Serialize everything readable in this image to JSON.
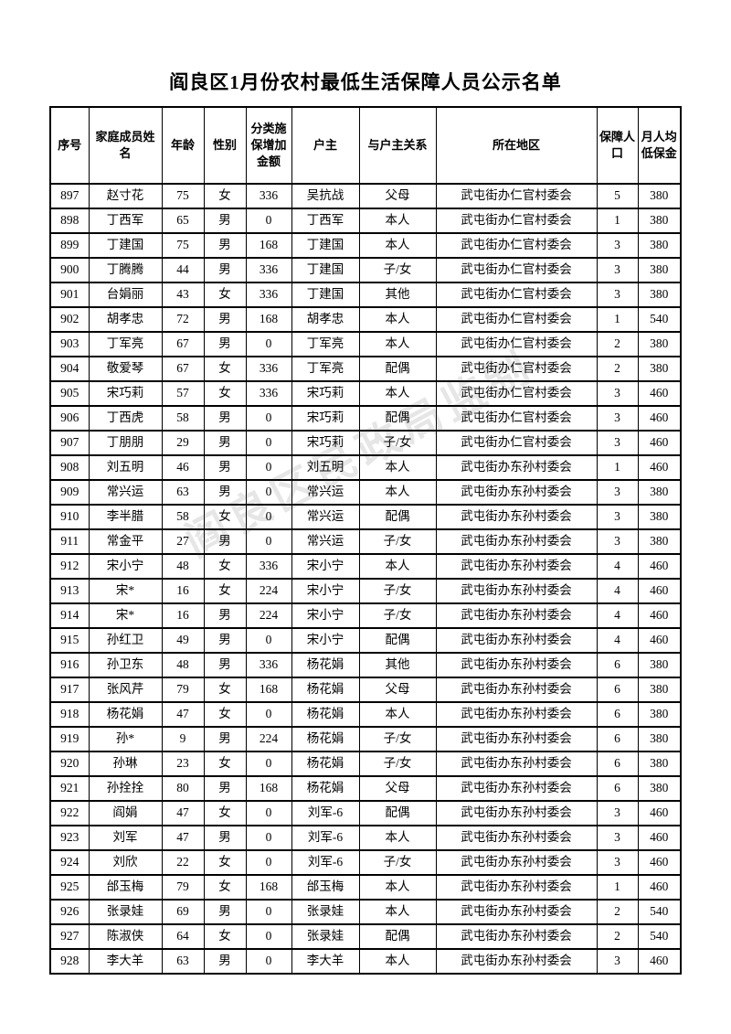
{
  "page": {
    "title": "阎良区1月份农村最低生活保障人员公示名单"
  },
  "watermark": {
    "text": "阎良区民政局监制"
  },
  "colors": {
    "background": "#ffffff",
    "border": "#000000",
    "text": "#000000",
    "watermark_gray": "#3c3c3c"
  },
  "table": {
    "columns": [
      "序号",
      "家庭成员姓名",
      "年龄",
      "性别",
      "分类施保增加金额",
      "户主",
      "与户主关系",
      "所在地区",
      "保障人口",
      "月人均低保金"
    ],
    "rows": [
      [
        897,
        "赵寸花",
        75,
        "女",
        336,
        "吴抗战",
        "父母",
        "武屯街办仁官村委会",
        5,
        380
      ],
      [
        898,
        "丁西军",
        65,
        "男",
        0,
        "丁西军",
        "本人",
        "武屯街办仁官村委会",
        1,
        380
      ],
      [
        899,
        "丁建国",
        75,
        "男",
        168,
        "丁建国",
        "本人",
        "武屯街办仁官村委会",
        3,
        380
      ],
      [
        900,
        "丁腾腾",
        44,
        "男",
        336,
        "丁建国",
        "子/女",
        "武屯街办仁官村委会",
        3,
        380
      ],
      [
        901,
        "台娟丽",
        43,
        "女",
        336,
        "丁建国",
        "其他",
        "武屯街办仁官村委会",
        3,
        380
      ],
      [
        902,
        "胡孝忠",
        72,
        "男",
        168,
        "胡孝忠",
        "本人",
        "武屯街办仁官村委会",
        1,
        540
      ],
      [
        903,
        "丁军亮",
        67,
        "男",
        0,
        "丁军亮",
        "本人",
        "武屯街办仁官村委会",
        2,
        380
      ],
      [
        904,
        "敬爱琴",
        67,
        "女",
        336,
        "丁军亮",
        "配偶",
        "武屯街办仁官村委会",
        2,
        380
      ],
      [
        905,
        "宋巧莉",
        57,
        "女",
        336,
        "宋巧莉",
        "本人",
        "武屯街办仁官村委会",
        3,
        460
      ],
      [
        906,
        "丁西虎",
        58,
        "男",
        0,
        "宋巧莉",
        "配偶",
        "武屯街办仁官村委会",
        3,
        460
      ],
      [
        907,
        "丁朋朋",
        29,
        "男",
        0,
        "宋巧莉",
        "子/女",
        "武屯街办仁官村委会",
        3,
        460
      ],
      [
        908,
        "刘五明",
        46,
        "男",
        0,
        "刘五明",
        "本人",
        "武屯街办东孙村委会",
        1,
        460
      ],
      [
        909,
        "常兴运",
        63,
        "男",
        0,
        "常兴运",
        "本人",
        "武屯街办东孙村委会",
        3,
        380
      ],
      [
        910,
        "李半腊",
        58,
        "女",
        0,
        "常兴运",
        "配偶",
        "武屯街办东孙村委会",
        3,
        380
      ],
      [
        911,
        "常金平",
        27,
        "男",
        0,
        "常兴运",
        "子/女",
        "武屯街办东孙村委会",
        3,
        380
      ],
      [
        912,
        "宋小宁",
        48,
        "女",
        336,
        "宋小宁",
        "本人",
        "武屯街办东孙村委会",
        4,
        460
      ],
      [
        913,
        "宋*",
        16,
        "女",
        224,
        "宋小宁",
        "子/女",
        "武屯街办东孙村委会",
        4,
        460
      ],
      [
        914,
        "宋*",
        16,
        "男",
        224,
        "宋小宁",
        "子/女",
        "武屯街办东孙村委会",
        4,
        460
      ],
      [
        915,
        "孙红卫",
        49,
        "男",
        0,
        "宋小宁",
        "配偶",
        "武屯街办东孙村委会",
        4,
        460
      ],
      [
        916,
        "孙卫东",
        48,
        "男",
        336,
        "杨花娟",
        "其他",
        "武屯街办东孙村委会",
        6,
        380
      ],
      [
        917,
        "张风芹",
        79,
        "女",
        168,
        "杨花娟",
        "父母",
        "武屯街办东孙村委会",
        6,
        380
      ],
      [
        918,
        "杨花娟",
        47,
        "女",
        0,
        "杨花娟",
        "本人",
        "武屯街办东孙村委会",
        6,
        380
      ],
      [
        919,
        "孙*",
        9,
        "男",
        224,
        "杨花娟",
        "子/女",
        "武屯街办东孙村委会",
        6,
        380
      ],
      [
        920,
        "孙琳",
        23,
        "女",
        0,
        "杨花娟",
        "子/女",
        "武屯街办东孙村委会",
        6,
        380
      ],
      [
        921,
        "孙拴拴",
        80,
        "男",
        168,
        "杨花娟",
        "父母",
        "武屯街办东孙村委会",
        6,
        380
      ],
      [
        922,
        "阎娟",
        47,
        "女",
        0,
        "刘军-6",
        "配偶",
        "武屯街办东孙村委会",
        3,
        460
      ],
      [
        923,
        "刘军",
        47,
        "男",
        0,
        "刘军-6",
        "本人",
        "武屯街办东孙村委会",
        3,
        460
      ],
      [
        924,
        "刘欣",
        22,
        "女",
        0,
        "刘军-6",
        "子/女",
        "武屯街办东孙村委会",
        3,
        460
      ],
      [
        925,
        "邰玉梅",
        79,
        "女",
        168,
        "邰玉梅",
        "本人",
        "武屯街办东孙村委会",
        1,
        460
      ],
      [
        926,
        "张录娃",
        69,
        "男",
        0,
        "张录娃",
        "本人",
        "武屯街办东孙村委会",
        2,
        540
      ],
      [
        927,
        "陈淑侠",
        64,
        "女",
        0,
        "张录娃",
        "配偶",
        "武屯街办东孙村委会",
        2,
        540
      ],
      [
        928,
        "李大羊",
        63,
        "男",
        0,
        "李大羊",
        "本人",
        "武屯街办东孙村委会",
        3,
        460
      ]
    ]
  }
}
